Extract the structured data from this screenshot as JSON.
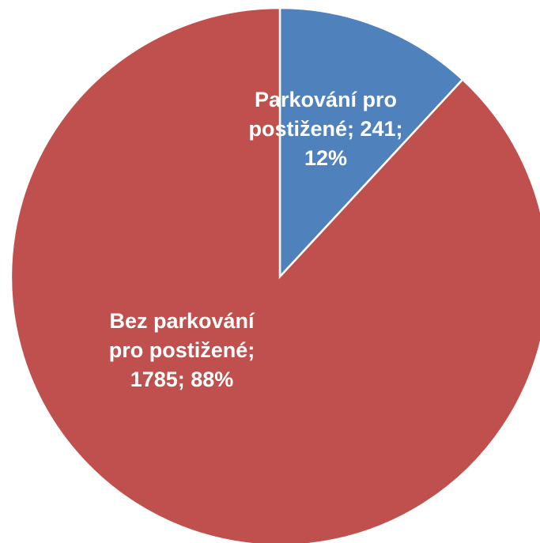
{
  "chart_data": {
    "type": "pie",
    "categories": [
      "Parkování pro postižené",
      "Bez parkování pro postižené"
    ],
    "values": [
      241,
      1785
    ],
    "percentages": [
      12,
      88
    ],
    "value_labels": [
      "Parkování pro postižené; 241; 12%",
      "Bez parkování pro postižené; 1785; 88%"
    ],
    "colors": [
      "#4f81bd",
      "#c0504d"
    ]
  }
}
